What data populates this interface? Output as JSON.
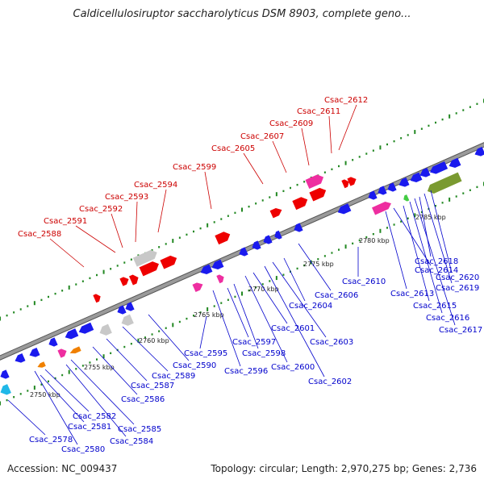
{
  "title": "Caldicellulosiruptor saccharolyticus DSM 8903, complete geno...",
  "footer": {
    "accession": "Accession: NC_009437",
    "topology": "Topology: circular; Length: 2,970,275 bp; Genes: 2,736"
  },
  "colors": {
    "forward_label": "#cc0000",
    "reverse_label": "#0000cc",
    "forward_gene": "#ee0000",
    "reverse_gene": "#1a1aee",
    "rna": "#ee2ea0",
    "pseudo": "#c8c8c8",
    "other": "#7a9a30",
    "backbone": "#9a9a9a",
    "tick": "#228822"
  },
  "scale_labels": [
    "2750 kbp",
    "2755 kbp",
    "2760 kbp",
    "2765 kbp",
    "2770 kbp",
    "2775 kbp",
    "2780 kbp",
    "2785 kbp"
  ],
  "forward_labels": [
    "Csac_2588",
    "Csac_2591",
    "Csac_2592",
    "Csac_2593",
    "Csac_2594",
    "Csac_2599",
    "Csac_2605",
    "Csac_2607",
    "Csac_2609",
    "Csac_2611",
    "Csac_2612"
  ],
  "reverse_labels": [
    "Csac_2578",
    "Csac_2580",
    "Csac_2581",
    "Csac_2582",
    "Csac_2584",
    "Csac_2585",
    "Csac_2586",
    "Csac_2587",
    "Csac_2589",
    "Csac_2590",
    "Csac_2595",
    "Csac_2596",
    "Csac_2597",
    "Csac_2598",
    "Csac_2600",
    "Csac_2601",
    "Csac_2602",
    "Csac_2603",
    "Csac_2604",
    "Csac_2606",
    "Csac_2610",
    "Csac_2613",
    "Csac_2614",
    "Csac_2615",
    "Csac_2616",
    "Csac_2617",
    "Csac_2618",
    "Csac_2619",
    "Csac_2620"
  ]
}
